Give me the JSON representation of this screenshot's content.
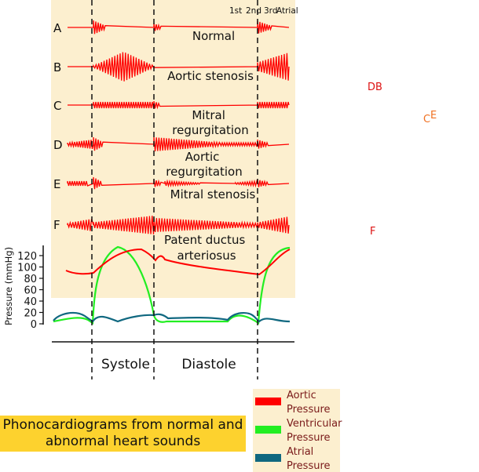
{
  "heart_sound_labels": [
    "1st",
    "2nd",
    "3rd",
    "Atrial"
  ],
  "rows": [
    {
      "letter": "A",
      "name": "Normal"
    },
    {
      "letter": "B",
      "name": "Aortic stenosis"
    },
    {
      "letter": "C",
      "name": "Mitral regurgitation"
    },
    {
      "letter": "D",
      "name": "Aortic regurgitation"
    },
    {
      "letter": "E",
      "name": "Mitral stenosis"
    },
    {
      "letter": "F",
      "name": "Patent ductus arteriosus"
    }
  ],
  "orphan_letters": {
    "db": "DB",
    "c": "C",
    "e": "E",
    "f": "F"
  },
  "y_axis": {
    "label": "Pressure (mmHg)",
    "ticks": [
      "120",
      "100",
      "80",
      "60",
      "40",
      "20",
      "0"
    ]
  },
  "phases": {
    "systole": "Systole",
    "diastole": "Diastole"
  },
  "legend": [
    {
      "label": "Aortic Pressure",
      "color": "#ff0000"
    },
    {
      "label": "Ventricular Pressure",
      "color": "#22ee22"
    },
    {
      "label": "Atrial Pressure",
      "color": "#106880"
    }
  ],
  "caption": "Phonocardiograms from normal and abnormal heart sounds",
  "colors": {
    "panel": "#fcefcf",
    "waveform": "#ff0000",
    "orphan_red": "#dd1111",
    "orphan_orange": "#f07020",
    "caption_bg": "#fdd22e"
  }
}
